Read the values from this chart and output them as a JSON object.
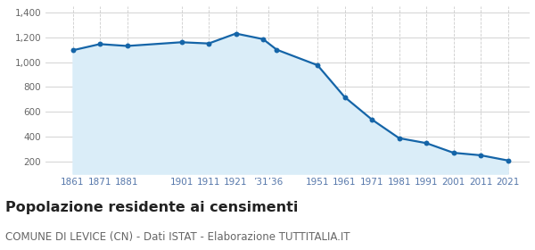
{
  "years": [
    1861,
    1871,
    1881,
    1901,
    1911,
    1921,
    1931,
    1936,
    1951,
    1961,
    1971,
    1981,
    1991,
    2001,
    2011,
    2021
  ],
  "population": [
    1095,
    1145,
    1130,
    1160,
    1150,
    1230,
    1185,
    1100,
    975,
    718,
    537,
    387,
    347,
    269,
    249,
    207
  ],
  "ylim": [
    100,
    1450
  ],
  "yticks": [
    200,
    400,
    600,
    800,
    1000,
    1200,
    1400
  ],
  "xlim_left": 1851,
  "xlim_right": 2029,
  "line_color": "#1565a8",
  "fill_color": "#daedf8",
  "marker_color": "#1565a8",
  "grid_color_y": "#cccccc",
  "grid_color_x": "#cccccc",
  "background_color": "#ffffff",
  "title": "Popolazione residente ai censimenti",
  "subtitle": "COMUNE DI LEVICE (CN) - Dati ISTAT - Elaborazione TUTTITALIA.IT",
  "title_fontsize": 11.5,
  "subtitle_fontsize": 8.5,
  "tick_label_color": "#5577aa",
  "y_tick_label_color": "#666666"
}
